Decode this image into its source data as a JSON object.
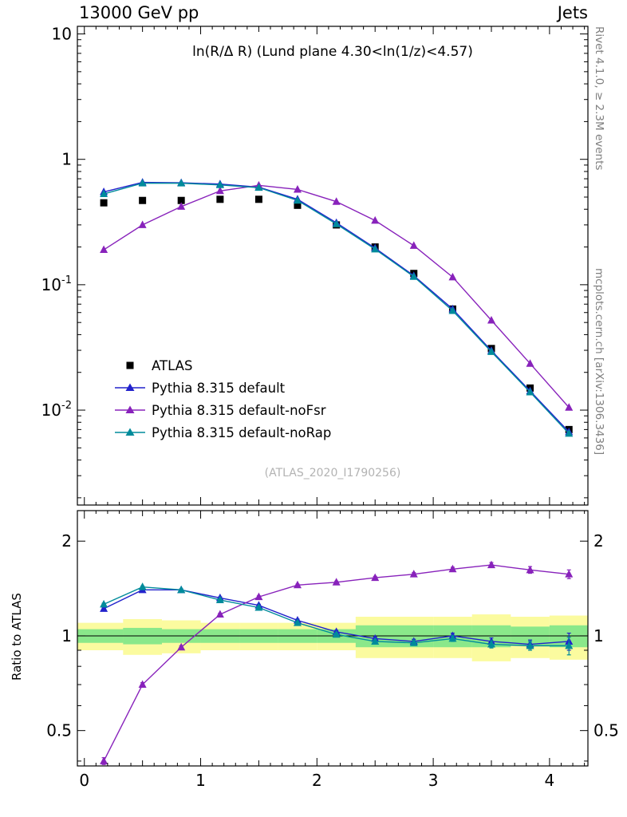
{
  "header": {
    "left": "13000 GeV pp",
    "right": "Jets"
  },
  "side_labels": {
    "right_top": "Rivet 4.1.0, ≥ 2.3M events",
    "right_bottom": "mcplots.cern.ch [arXiv:1306.3436]"
  },
  "watermark": "(ATLAS_2020_I1790256)",
  "chart_data": {
    "type": "line",
    "title": "ln(R/Δ R) (Lund plane 4.30<ln(1/z)<4.57)",
    "xlabel": "",
    "x": [
      0.167,
      0.5,
      0.833,
      1.167,
      1.5,
      1.833,
      2.167,
      2.5,
      2.833,
      3.167,
      3.5,
      3.833,
      4.167
    ],
    "bin_half_width": 0.167,
    "xlim": [
      -0.06,
      4.33
    ],
    "xticks": [
      [
        0,
        "0"
      ],
      [
        1,
        "1"
      ],
      [
        2,
        "2"
      ],
      [
        3,
        "3"
      ],
      [
        4,
        "4"
      ]
    ],
    "main_panel": {
      "yscale": "log",
      "ylim": [
        0.00175,
        11.5
      ],
      "yticks": [
        [
          10,
          "10",
          ""
        ],
        [
          1,
          "1",
          ""
        ],
        [
          0.1,
          "10",
          "-1"
        ],
        [
          0.01,
          "10",
          "-2"
        ]
      ],
      "series": [
        {
          "name": "ATLAS",
          "marker": "square",
          "color": "#000000",
          "line": false,
          "values": [
            0.45,
            0.47,
            0.47,
            0.48,
            0.48,
            0.43,
            0.3,
            0.2,
            0.123,
            0.064,
            0.031,
            0.015,
            0.007
          ]
        },
        {
          "name": "Pythia 8.315 default",
          "marker": "triangle",
          "color": "#2222cc",
          "line": true,
          "values": [
            0.55,
            0.655,
            0.65,
            0.635,
            0.6,
            0.48,
            0.312,
            0.196,
            0.118,
            0.064,
            0.0298,
            0.0142,
            0.0067
          ]
        },
        {
          "name": "Pythia 8.315 default-noFsr",
          "marker": "triangle",
          "color": "#8822bb",
          "line": true,
          "values": [
            0.19,
            0.3,
            0.42,
            0.56,
            0.62,
            0.575,
            0.46,
            0.325,
            0.205,
            0.115,
            0.052,
            0.0235,
            0.0105
          ]
        },
        {
          "name": "Pythia 8.315 default-noRap",
          "marker": "triangle",
          "color": "#008b9b",
          "line": true,
          "values": [
            0.53,
            0.645,
            0.645,
            0.625,
            0.595,
            0.47,
            0.305,
            0.192,
            0.116,
            0.062,
            0.0292,
            0.0139,
            0.0065
          ]
        }
      ]
    },
    "ratio_panel": {
      "ylabel": "Ratio to ATLAS",
      "yscale": "log",
      "ylim": [
        0.386,
        2.5
      ],
      "yticks": [
        [
          2,
          "2"
        ],
        [
          1,
          "1"
        ],
        [
          0.5,
          "0.5"
        ]
      ],
      "bands": {
        "yellow_color": "#fbfb9f",
        "green_color": "#8ae88a",
        "yellow": [
          [
            0.9,
            1.1
          ],
          [
            0.87,
            1.13
          ],
          [
            0.88,
            1.12
          ],
          [
            0.9,
            1.1
          ],
          [
            0.9,
            1.1
          ],
          [
            0.9,
            1.1
          ],
          [
            0.9,
            1.1
          ],
          [
            0.85,
            1.15
          ],
          [
            0.85,
            1.15
          ],
          [
            0.85,
            1.15
          ],
          [
            0.83,
            1.17
          ],
          [
            0.85,
            1.15
          ],
          [
            0.84,
            1.16
          ]
        ],
        "green": [
          [
            0.95,
            1.05
          ],
          [
            0.94,
            1.06
          ],
          [
            0.95,
            1.05
          ],
          [
            0.95,
            1.05
          ],
          [
            0.95,
            1.05
          ],
          [
            0.95,
            1.05
          ],
          [
            0.95,
            1.05
          ],
          [
            0.92,
            1.08
          ],
          [
            0.92,
            1.08
          ],
          [
            0.92,
            1.08
          ],
          [
            0.92,
            1.08
          ],
          [
            0.93,
            1.07
          ],
          [
            0.92,
            1.08
          ]
        ]
      },
      "series": [
        {
          "name": "Pythia 8.315 default",
          "color": "#2222cc",
          "values": [
            1.22,
            1.4,
            1.4,
            1.32,
            1.25,
            1.12,
            1.03,
            0.98,
            0.96,
            1.0,
            0.96,
            0.94,
            0.96
          ],
          "yerr": [
            0.01,
            0.01,
            0.01,
            0.01,
            0.01,
            0.01,
            0.01,
            0.012,
            0.015,
            0.02,
            0.025,
            0.03,
            0.06
          ]
        },
        {
          "name": "Pythia 8.315 default-noFsr",
          "color": "#8822bb",
          "values": [
            0.4,
            0.7,
            0.92,
            1.17,
            1.33,
            1.45,
            1.48,
            1.53,
            1.57,
            1.63,
            1.68,
            1.62,
            1.57
          ],
          "yerr": [
            0.01,
            0.01,
            0.01,
            0.01,
            0.01,
            0.01,
            0.012,
            0.015,
            0.018,
            0.022,
            0.03,
            0.04,
            0.05
          ]
        },
        {
          "name": "Pythia 8.315 default-noRap",
          "color": "#008b9b",
          "values": [
            1.26,
            1.43,
            1.4,
            1.3,
            1.23,
            1.1,
            1.01,
            0.96,
            0.95,
            0.98,
            0.94,
            0.93,
            0.93
          ],
          "yerr": [
            0.01,
            0.01,
            0.01,
            0.01,
            0.01,
            0.01,
            0.01,
            0.012,
            0.015,
            0.02,
            0.025,
            0.03,
            0.06
          ]
        }
      ]
    }
  }
}
